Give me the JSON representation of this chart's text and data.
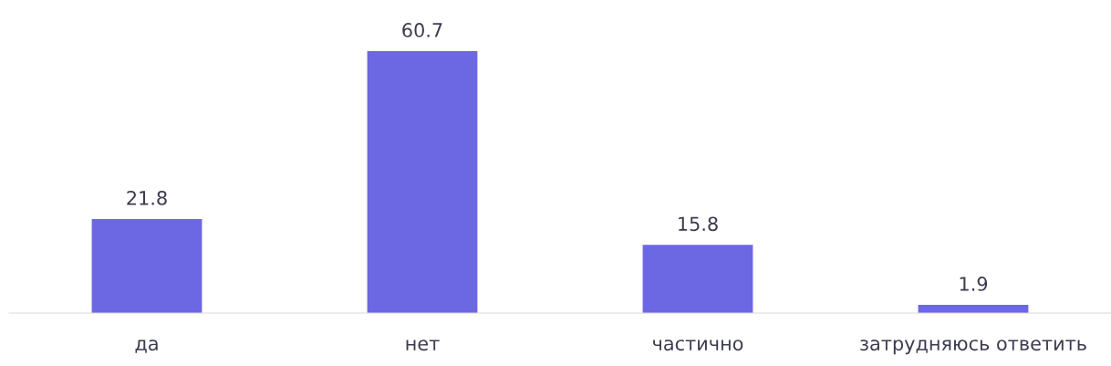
{
  "chart_data": {
    "type": "bar",
    "categories": [
      "да",
      "нет",
      "частично",
      "затрудняюсь ответить"
    ],
    "values": [
      21.8,
      60.7,
      15.8,
      1.9
    ],
    "color": "#6c67e3",
    "data_labels": true,
    "grid": false,
    "legend": false
  }
}
